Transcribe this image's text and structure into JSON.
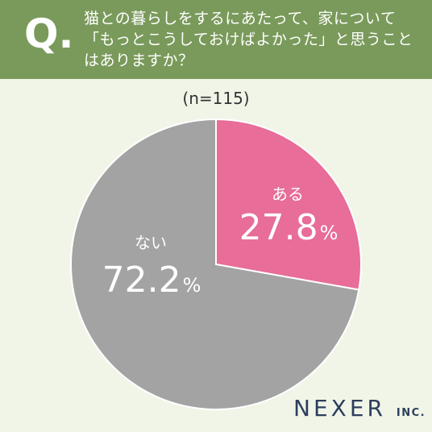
{
  "header": {
    "q_mark": "Q.",
    "question": "猫との暮らしをするにあたって、家について「もっとこうしておけばよかった」と思うことはありますか？"
  },
  "sample_size": "(n=115)",
  "logo": {
    "brand": "NEXER",
    "suffix": "INC."
  },
  "colors": {
    "header": "#7a9a5b",
    "aru": "#e86d98",
    "nai": "#a3a3a3",
    "background": "#f1f5e8"
  },
  "chart_data": {
    "type": "pie",
    "slices": [
      {
        "label": "ある",
        "value": 27.8,
        "display": "27.8",
        "unit": "%"
      },
      {
        "label": "ない",
        "value": 72.2,
        "display": "72.2",
        "unit": "%"
      }
    ]
  }
}
